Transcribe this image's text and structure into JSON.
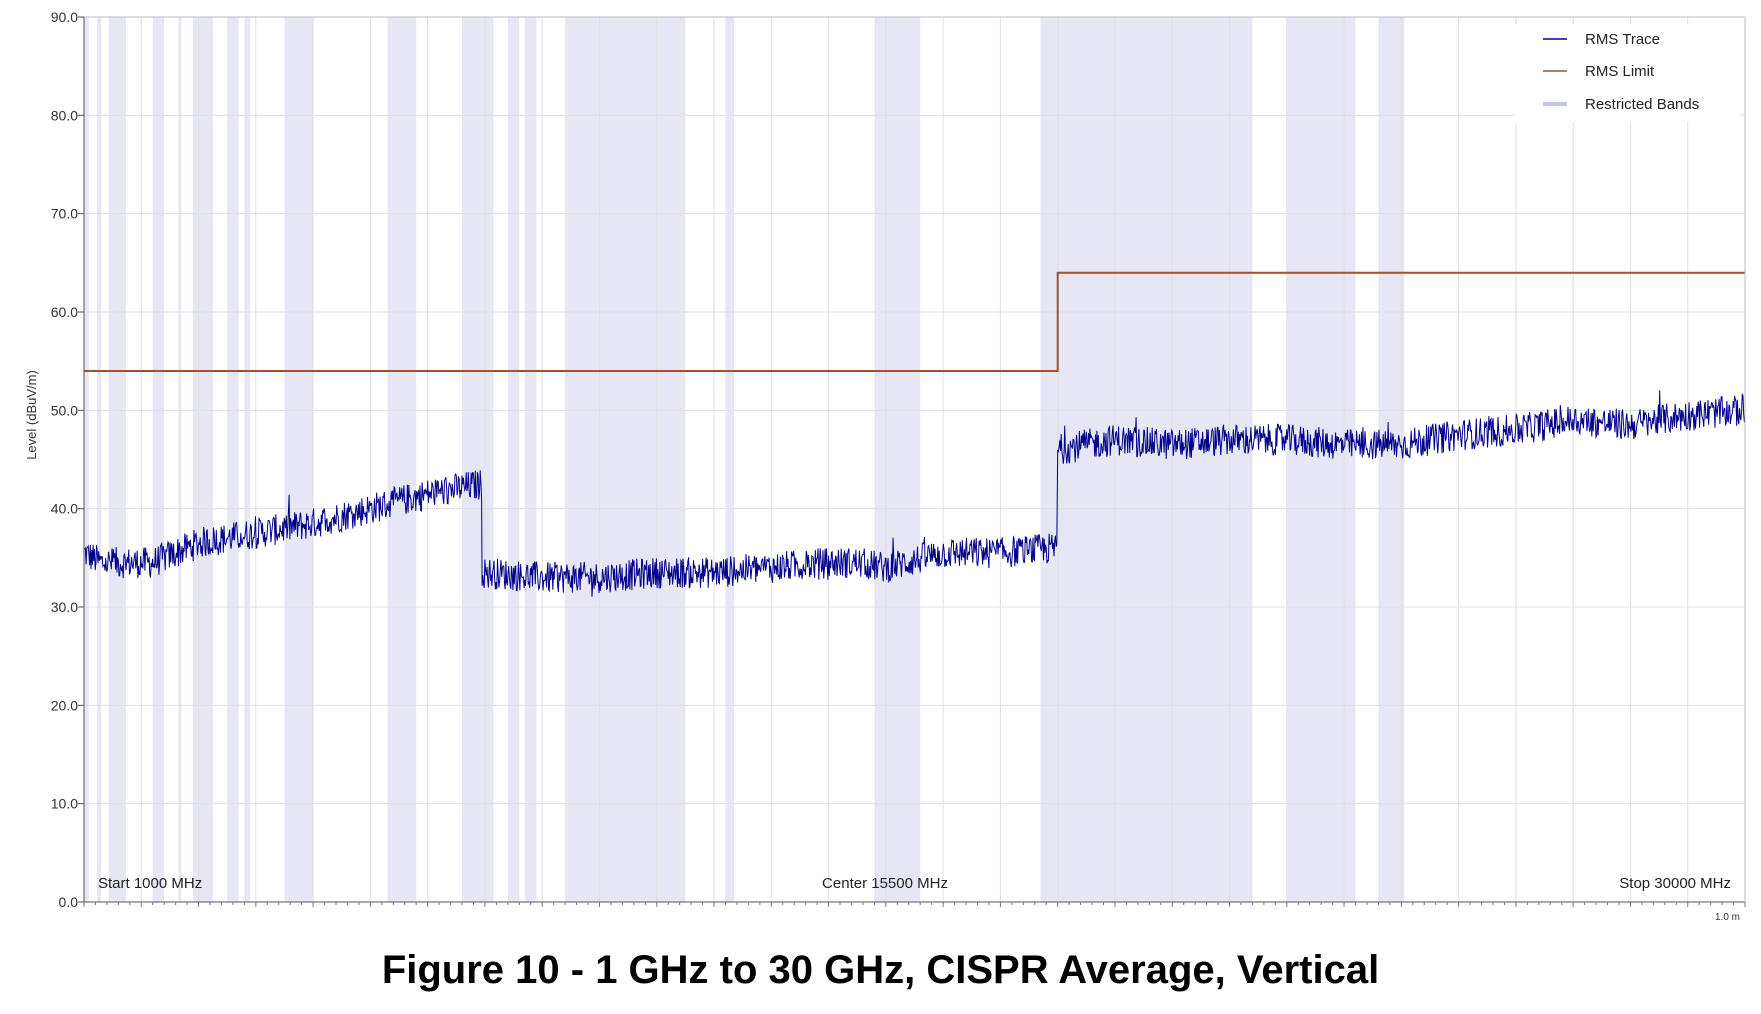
{
  "caption": "Figure 10 - 1 GHz to 30 GHz, CISPR Average, Vertical",
  "chart_data": {
    "type": "line",
    "title": "",
    "xlabel": "",
    "ylabel": "Level (dBuV/m)",
    "xlim": [
      1000,
      30000
    ],
    "ylim": [
      0,
      90
    ],
    "y_ticks": [
      "0.0",
      "10.0",
      "20.0",
      "30.0",
      "40.0",
      "50.0",
      "60.0",
      "70.0",
      "80.0",
      "90.0"
    ],
    "y_tick_values": [
      0,
      10,
      20,
      30,
      40,
      50,
      60,
      70,
      80,
      90
    ],
    "x_gridlines": [
      1000,
      2000,
      3000,
      4000,
      5000,
      6000,
      7000,
      8000,
      9000,
      10000,
      11000,
      12000,
      13000,
      14000,
      15000,
      16000,
      17000,
      18000,
      19000,
      20000,
      21000,
      22000,
      23000,
      24000,
      25000,
      26000,
      27000,
      28000,
      29000,
      30000
    ],
    "grid": true,
    "span_labels": {
      "start": "Start 1000 MHz",
      "center": "Center 15500 MHz",
      "stop": "Stop 30000 MHz"
    },
    "corner_label": "1.0 m",
    "legend": {
      "placement": "top-right",
      "entries": [
        "RMS Trace",
        "RMS Limit",
        "Restricted Bands"
      ]
    },
    "colors": {
      "trace": "#00008b",
      "limit": "#a0522d",
      "restricted": "#e6e6f4",
      "restricted_legend": "#c5c5e6",
      "grid": "#e0e0e0"
    },
    "series": [
      {
        "name": "RMS Limit",
        "x": [
          1000,
          18000,
          18000,
          30000
        ],
        "y": [
          54,
          54,
          64,
          64
        ]
      },
      {
        "name": "RMS Trace",
        "segments": [
          {
            "x": [
              1000,
              1300,
              2200,
              3000,
              4000,
              5000,
              6000,
              7000,
              7950
            ],
            "y": [
              35.5,
              34.5,
              34.5,
              36.5,
              37.5,
              38.5,
              40,
              41.5,
              42.5
            ]
          },
          {
            "x": [
              7950,
              9000,
              10000,
              11000,
              12000,
              13000,
              14000,
              14500,
              15000,
              16000,
              17000,
              17990
            ],
            "y": [
              33.5,
              33,
              33,
              33.5,
              33.5,
              34,
              34.5,
              34.5,
              34,
              35.5,
              35.5,
              36
            ]
          },
          {
            "x": [
              18000,
              19000,
              20000,
              21000,
              22000,
              23000,
              24000,
              25000,
              26000,
              27000,
              28000,
              29000,
              30000
            ],
            "y": [
              46,
              47,
              46.5,
              47,
              47,
              46.5,
              46.5,
              47.5,
              48,
              49,
              48.5,
              49.5,
              50
            ]
          }
        ]
      }
    ],
    "restricted_bands_mhz": [
      [
        1000,
        1080
      ],
      [
        1230,
        1300
      ],
      [
        1430,
        1730
      ],
      [
        2200,
        2400
      ],
      [
        2650,
        2700
      ],
      [
        2900,
        3250
      ],
      [
        3500,
        3700
      ],
      [
        3800,
        3900
      ],
      [
        4500,
        5000
      ],
      [
        6300,
        6800
      ],
      [
        7600,
        8150
      ],
      [
        8400,
        8600
      ],
      [
        8700,
        8900
      ],
      [
        9400,
        11500
      ],
      [
        12200,
        12350
      ],
      [
        14800,
        15600
      ],
      [
        17700,
        21400
      ],
      [
        22000,
        23200
      ],
      [
        23600,
        24050
      ]
    ]
  }
}
